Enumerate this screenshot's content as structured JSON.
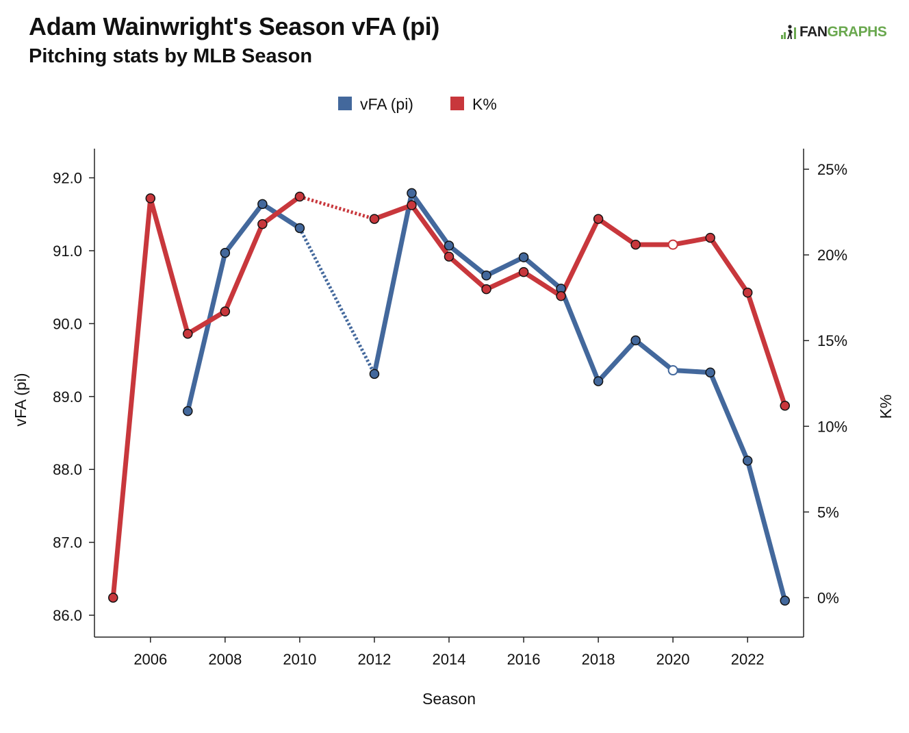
{
  "header": {
    "title": "Adam Wainwright's Season vFA (pi)",
    "subtitle": "Pitching stats by MLB Season",
    "logo_text_a": "FAN",
    "logo_text_b": "GRAPHS",
    "logo_icon": "fangraphs-logo-icon"
  },
  "chart_data": {
    "type": "line",
    "xlabel": "Season",
    "ylabel_left": "vFA (pi)",
    "ylabel_right": "K%",
    "x_ticks": [
      2006,
      2008,
      2010,
      2012,
      2014,
      2016,
      2018,
      2020,
      2022
    ],
    "x_tick_labels": [
      "2006",
      "2008",
      "2010",
      "2012",
      "2014",
      "2016",
      "2018",
      "2020",
      "2022"
    ],
    "xlim": [
      2004.5,
      2023.5
    ],
    "y_left_ticks": [
      86,
      87,
      88,
      89,
      90,
      91,
      92
    ],
    "y_left_tick_labels": [
      "86.0",
      "87.0",
      "88.0",
      "89.0",
      "90.0",
      "91.0",
      "92.0"
    ],
    "y_left_lim": [
      85.7,
      92.4
    ],
    "y_right_ticks": [
      0,
      5,
      10,
      15,
      20,
      25
    ],
    "y_right_tick_labels": [
      "0%",
      "5%",
      "10%",
      "15%",
      "20%",
      "25%"
    ],
    "y_right_lim": [
      -2.3,
      26.2
    ],
    "legend_position": "top-center",
    "grid": false,
    "series": [
      {
        "name": "vFA (pi)",
        "axis": "left",
        "color": "#43689c",
        "points": [
          {
            "x": 2007,
            "y": 88.8
          },
          {
            "x": 2008,
            "y": 90.97
          },
          {
            "x": 2009,
            "y": 91.64
          },
          {
            "x": 2010,
            "y": 91.31
          },
          {
            "x": 2012,
            "y": 89.31
          },
          {
            "x": 2013,
            "y": 91.79
          },
          {
            "x": 2014,
            "y": 91.07
          },
          {
            "x": 2015,
            "y": 90.66
          },
          {
            "x": 2016,
            "y": 90.91
          },
          {
            "x": 2017,
            "y": 90.48
          },
          {
            "x": 2018,
            "y": 89.21
          },
          {
            "x": 2019,
            "y": 89.77
          },
          {
            "x": 2020,
            "y": 89.36,
            "hollow": true
          },
          {
            "x": 2021,
            "y": 89.33
          },
          {
            "x": 2022,
            "y": 88.12
          },
          {
            "x": 2023,
            "y": 86.2
          }
        ]
      },
      {
        "name": "K%",
        "axis": "right",
        "color": "#c8373c",
        "points": [
          {
            "x": 2005,
            "y": 0.0
          },
          {
            "x": 2006,
            "y": 23.3
          },
          {
            "x": 2007,
            "y": 15.4
          },
          {
            "x": 2008,
            "y": 16.7
          },
          {
            "x": 2009,
            "y": 21.8
          },
          {
            "x": 2010,
            "y": 23.4
          },
          {
            "x": 2012,
            "y": 22.1
          },
          {
            "x": 2013,
            "y": 22.9
          },
          {
            "x": 2014,
            "y": 19.9
          },
          {
            "x": 2015,
            "y": 18.0
          },
          {
            "x": 2016,
            "y": 19.0
          },
          {
            "x": 2017,
            "y": 17.6
          },
          {
            "x": 2018,
            "y": 22.1
          },
          {
            "x": 2019,
            "y": 20.6
          },
          {
            "x": 2020,
            "y": 20.6,
            "hollow": true
          },
          {
            "x": 2021,
            "y": 21.0
          },
          {
            "x": 2022,
            "y": 17.8
          },
          {
            "x": 2023,
            "y": 11.2
          }
        ]
      }
    ]
  }
}
